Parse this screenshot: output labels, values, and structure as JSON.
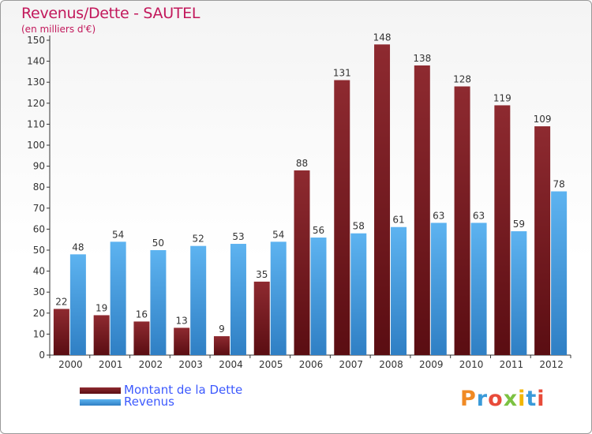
{
  "header": {
    "title": "Revenus/Dette - SAUTEL",
    "subtitle": "(en milliers d'€)"
  },
  "colors": {
    "dette": "#7a1f24",
    "revenus": "#4ea3e6",
    "title": "#c2185b",
    "legend_text": "#3d5afe"
  },
  "logo": {
    "text": "Proxiti"
  },
  "chart_data": {
    "type": "bar",
    "categories": [
      "2000",
      "2001",
      "2002",
      "2003",
      "2004",
      "2005",
      "2006",
      "2007",
      "2008",
      "2009",
      "2010",
      "2011",
      "2012"
    ],
    "series": [
      {
        "name": "Montant de la Dette",
        "values": [
          22,
          19,
          16,
          13,
          9,
          35,
          88,
          131,
          148,
          138,
          128,
          119,
          109
        ]
      },
      {
        "name": "Revenus",
        "values": [
          48,
          54,
          50,
          52,
          53,
          54,
          56,
          58,
          61,
          63,
          63,
          59,
          78
        ]
      }
    ],
    "ylim": [
      0,
      150
    ],
    "yticks": [
      0,
      10,
      20,
      30,
      40,
      50,
      60,
      70,
      80,
      90,
      100,
      110,
      120,
      130,
      140,
      150
    ],
    "grid": false,
    "legend_position": "bottom-left"
  }
}
